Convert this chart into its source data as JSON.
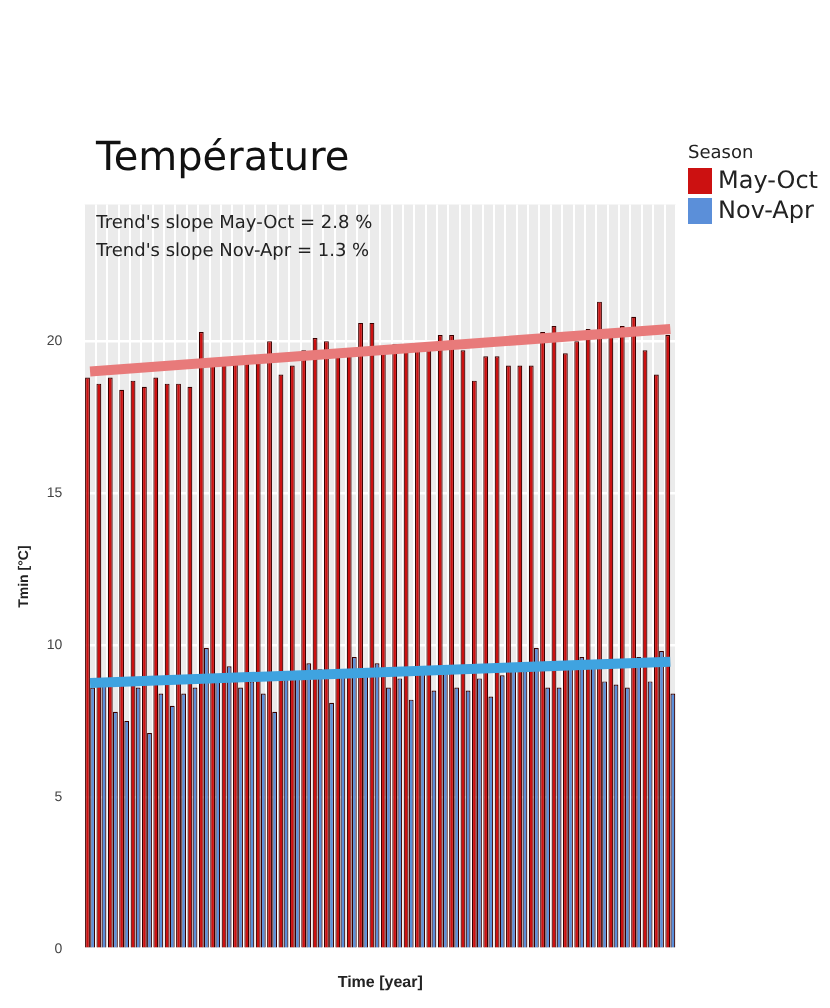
{
  "chart_data": {
    "type": "bar",
    "title": "Température",
    "xlabel": "Time [year]",
    "ylabel": "Tmin [°C]",
    "legend_title": "Season",
    "annotations": [
      "Trend's slope May-Oct = 2.8 %",
      "Trend's slope Nov-Apr = 1.3 %"
    ],
    "categories": [
      null,
      null,
      null,
      null,
      null,
      null,
      null,
      null,
      null,
      null,
      null,
      null,
      null,
      null,
      null,
      null,
      null,
      null,
      null,
      null,
      null,
      null,
      null,
      null,
      null,
      null,
      null,
      null,
      null,
      null,
      null,
      null,
      null,
      null,
      null,
      null,
      null,
      null,
      null,
      null,
      null,
      null,
      null,
      null,
      null,
      null,
      null,
      null,
      null,
      null,
      null,
      null
    ],
    "series": [
      {
        "name": "May-Oct",
        "color": "#cc1111",
        "values": [
          18.8,
          18.6,
          18.8,
          18.4,
          18.7,
          18.5,
          18.8,
          18.6,
          18.6,
          18.5,
          20.3,
          19.2,
          19.3,
          19.3,
          19.4,
          19.4,
          20.0,
          18.9,
          19.2,
          19.7,
          20.1,
          20.0,
          19.6,
          19.7,
          20.6,
          20.6,
          19.7,
          19.9,
          19.8,
          19.7,
          19.7,
          20.2,
          20.2,
          19.7,
          18.7,
          19.5,
          19.5,
          19.2,
          19.2,
          19.2,
          20.3,
          20.5,
          19.6,
          20.0,
          20.4,
          21.3,
          20.2,
          20.5,
          20.8,
          19.7,
          18.9,
          20.2
        ]
      },
      {
        "name": "Nov-Apr",
        "color": "#5b8fd9",
        "values": [
          8.6,
          8.8,
          7.8,
          7.5,
          8.6,
          7.1,
          8.4,
          8.0,
          8.4,
          8.6,
          9.9,
          8.8,
          9.3,
          8.6,
          8.8,
          8.4,
          7.8,
          8.9,
          9.0,
          9.4,
          9.2,
          8.1,
          9.2,
          9.6,
          9.0,
          9.4,
          8.6,
          8.9,
          8.2,
          9.1,
          8.5,
          9.3,
          8.6,
          8.5,
          8.9,
          8.3,
          9.0,
          9.3,
          9.4,
          9.9,
          8.6,
          8.6,
          9.3,
          9.6,
          9.4,
          8.8,
          8.7,
          8.6,
          9.6,
          8.8,
          9.8,
          8.4
        ]
      },
      {
        "type": "line",
        "color": "#e87a7a",
        "values": [
          19.0,
          null,
          null,
          null,
          null,
          null,
          null,
          null,
          null,
          null,
          null,
          null,
          null,
          null,
          null,
          null,
          null,
          null,
          null,
          null,
          null,
          null,
          null,
          null,
          null,
          null,
          null,
          null,
          null,
          null,
          null,
          null,
          null,
          null,
          null,
          null,
          null,
          null,
          null,
          null,
          null,
          null,
          null,
          null,
          null,
          null,
          null,
          null,
          null,
          null,
          null,
          20.4
        ]
      },
      {
        "type": "line",
        "color": "#3fa3e0",
        "values": [
          8.75,
          null,
          null,
          null,
          null,
          null,
          null,
          null,
          null,
          null,
          null,
          null,
          null,
          null,
          null,
          null,
          null,
          null,
          null,
          null,
          null,
          null,
          null,
          null,
          null,
          null,
          null,
          null,
          null,
          null,
          null,
          null,
          null,
          null,
          null,
          null,
          null,
          null,
          null,
          null,
          null,
          null,
          null,
          null,
          null,
          null,
          null,
          null,
          null,
          null,
          null,
          9.45
        ]
      }
    ],
    "ylim": [
      0,
      24.5
    ],
    "yticks": [
      0,
      5,
      10,
      15,
      20
    ],
    "grid": true,
    "legend": "top right",
    "tick_labels": "y"
  }
}
